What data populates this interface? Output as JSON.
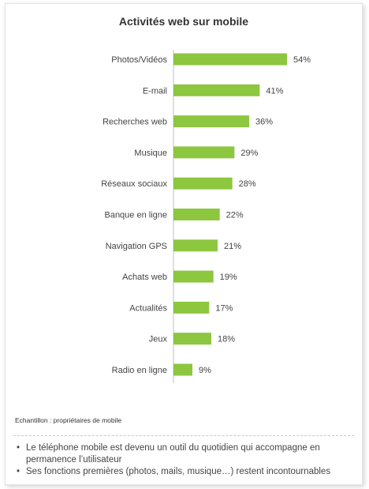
{
  "chart_data": {
    "type": "bar",
    "orientation": "horizontal",
    "title": "Activités web sur mobile",
    "categories": [
      "Photos/Vidéos",
      "E-mail",
      "Recherches web",
      "Musique",
      "Réseaux sociaux",
      "Banque en ligne",
      "Navigation GPS",
      "Achats web",
      "Actualités",
      "Jeux",
      "Radio en ligne"
    ],
    "values": [
      54,
      41,
      36,
      29,
      28,
      22,
      21,
      19,
      17,
      18,
      9
    ],
    "value_labels": [
      "54%",
      "41%",
      "36%",
      "29%",
      "28%",
      "22%",
      "21%",
      "19%",
      "17%",
      "18%",
      "9%"
    ],
    "unit": "%",
    "color": "#8dc63f",
    "grid": false
  },
  "footer": {
    "sample": "Echantillon : propriétaires de mobile",
    "bullets": [
      "Le téléphone mobile est devenu un outil du quotidien qui accompagne en permanence l’utilisateur",
      "Ses fonctions premières (photos, mails, musique…) restent incontournables"
    ],
    "bullet_glyph": "•"
  }
}
